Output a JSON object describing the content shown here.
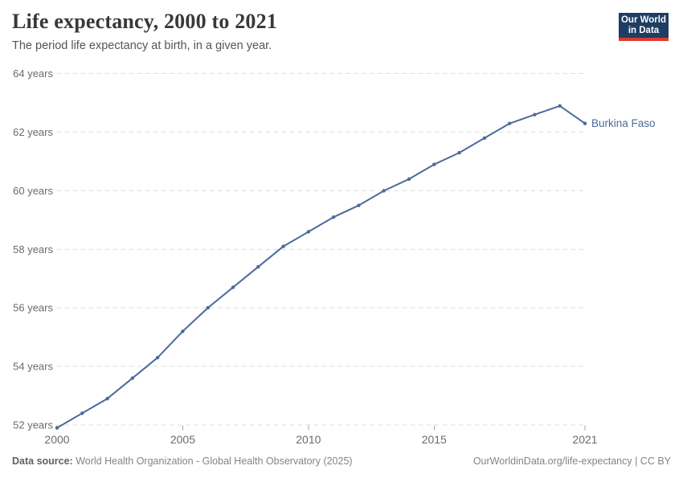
{
  "header": {
    "title": "Life expectancy, 2000 to 2021",
    "subtitle": "The period life expectancy at birth, in a given year."
  },
  "logo": {
    "line1": "Our World",
    "line2": "in Data",
    "bg_color": "#1d3d63",
    "accent_color": "#dc3a32"
  },
  "chart_data": {
    "type": "line",
    "title": "Life expectancy, 2000 to 2021",
    "xlabel": "",
    "ylabel": "",
    "xlim": [
      2000,
      2021
    ],
    "ylim": [
      51.9,
      64
    ],
    "grid": "horizontal-dashed",
    "legend_position": "end-of-line",
    "x": [
      2000,
      2001,
      2002,
      2003,
      2004,
      2005,
      2006,
      2007,
      2008,
      2009,
      2010,
      2011,
      2012,
      2013,
      2014,
      2015,
      2016,
      2017,
      2018,
      2019,
      2020,
      2021
    ],
    "series": [
      {
        "name": "Burkina Faso",
        "color": "#4C6A9C",
        "values": [
          51.9,
          52.4,
          52.9,
          53.6,
          54.3,
          55.2,
          56.0,
          56.7,
          57.4,
          58.1,
          58.6,
          59.1,
          59.5,
          60.0,
          60.4,
          60.9,
          61.3,
          61.8,
          62.3,
          62.6,
          62.9,
          62.3
        ]
      }
    ],
    "x_ticks": [
      2000,
      2005,
      2010,
      2015,
      2021
    ],
    "x_tick_labels": [
      "2000",
      "2005",
      "2010",
      "2015",
      "2021"
    ],
    "y_ticks": [
      52,
      54,
      56,
      58,
      60,
      62,
      64
    ],
    "y_tick_labels": [
      "52 years",
      "54 years",
      "56 years",
      "58 years",
      "60 years",
      "62 years",
      "64 years"
    ]
  },
  "footer": {
    "source_label": "Data source:",
    "source_text": " World Health Organization - Global Health Observatory (2025)",
    "right_text": "OurWorldinData.org/life-expectancy | CC BY"
  }
}
